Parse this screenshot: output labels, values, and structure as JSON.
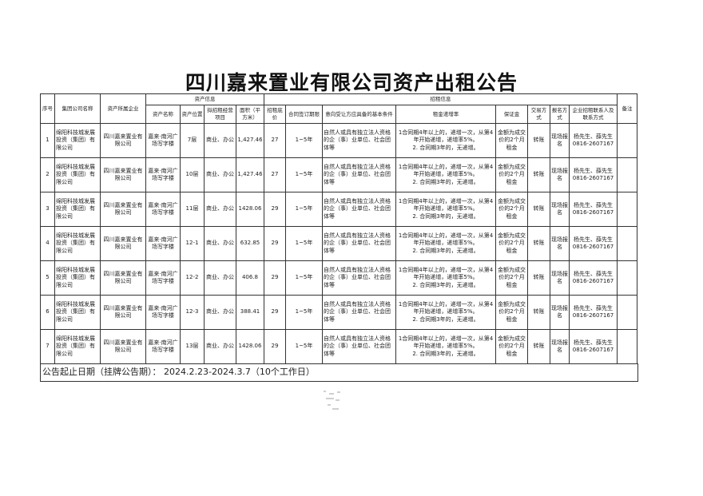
{
  "title": "四川嘉来置业有限公司资产出租公告",
  "headers": {
    "seq": "序号",
    "group_company": "集团公司名称",
    "owner": "资产所属企业",
    "asset_info": "资产信息",
    "asset_name": "资产名称",
    "asset_location": "资产位置",
    "business": "拟招租经营项目",
    "area": "面积（平方米）",
    "lease_info": "招租信息",
    "base_price": "招租底价",
    "term": "合同签订期限",
    "conditions": "意向受让方应具备的基本条件",
    "increase": "租金递增率",
    "deposit": "保证金",
    "trade": "交易方式",
    "signup": "报名方式",
    "contact": "企业招租联系人及联系方式",
    "remark": "备注"
  },
  "rows": [
    {
      "seq": "1",
      "group_company": "绵阳科技城发展投资（集团）有限公司",
      "owner": "四川嘉来置业有限公司",
      "asset_name": "嘉来·南河广场写字楼",
      "asset_location": "7层",
      "business": "商业、办公",
      "area": "1,427.46",
      "base_price": "27",
      "term": "1~5年",
      "conditions": "自然人或具有独立法人资格的企（事）业单位、社会团体等",
      "increase": "1合同期4年以上的，递增一次，从第4年开始递增，递增率5%。\n2. 合同期3年的，无递增。",
      "deposit": "金额为成交价的2个月租金",
      "trade": "转账",
      "signup": "现场报名",
      "contact": "杨先生、薛先生 0816-2607167",
      "remark": ""
    },
    {
      "seq": "2",
      "group_company": "绵阳科技城发展投资（集团）有限公司",
      "owner": "四川嘉来置业有限公司",
      "asset_name": "嘉来·南河广场写字楼",
      "asset_location": "10层",
      "business": "商业、办公",
      "area": "1,427.46",
      "base_price": "27",
      "term": "1~5年",
      "conditions": "自然人或具有独立法人资格的企（事）业单位、社会团体等",
      "increase": "1合同期4年以上的，递增一次，从第4年开始递增，递增率5%。\n2. 合同期3年的，无递增。",
      "deposit": "金额为成交价的2个月租金",
      "trade": "转账",
      "signup": "现场报名",
      "contact": "杨先生、薛先生 0816-2607167",
      "remark": ""
    },
    {
      "seq": "3",
      "group_company": "绵阳科技城发展投资（集团）有限公司",
      "owner": "四川嘉来置业有限公司",
      "asset_name": "嘉来·南河广场写字楼",
      "asset_location": "11层",
      "business": "商业、办公",
      "area": "1428.06",
      "base_price": "29",
      "term": "1~5年",
      "conditions": "自然人或具有独立法人资格的企（事）业单位、社会团体等",
      "increase": "1合同期4年以上的，递增一次，从第4年开始递增，递增率5%。\n2. 合同期3年的，无递增。",
      "deposit": "金额为成交价的2个月租金",
      "trade": "转账",
      "signup": "现场报名",
      "contact": "杨先生、薛先生 0816-2607167",
      "remark": ""
    },
    {
      "seq": "4",
      "group_company": "绵阳科技城发展投资（集团）有限公司",
      "owner": "四川嘉来置业有限公司",
      "asset_name": "嘉来·南河广场写字楼",
      "asset_location": "12-1",
      "business": "商业、办公",
      "area": "632.85",
      "base_price": "29",
      "term": "1~5年",
      "conditions": "自然人或具有独立法人资格的企（事）业单位、社会团体等",
      "increase": "1合同期4年以上的，递增一次，从第4年开始递增，递增率5%。\n2. 合同期3年的，无递增。",
      "deposit": "金额为成交价的2个月租金",
      "trade": "转账",
      "signup": "现场报名",
      "contact": "杨先生、薛先生 0816-2607167",
      "remark": ""
    },
    {
      "seq": "5",
      "group_company": "绵阳科技城发展投资（集团）有限公司",
      "owner": "四川嘉来置业有限公司",
      "asset_name": "嘉来·南河广场写字楼",
      "asset_location": "12-2",
      "business": "商业、办公",
      "area": "406.8",
      "base_price": "29",
      "term": "1~5年",
      "conditions": "自然人或具有独立法人资格的企（事）业单位、社会团体等",
      "increase": "1合同期4年以上的，递增一次，从第4年开始递增，递增率5%。\n2. 合同期3年的，无递增。",
      "deposit": "金额为成交价的2个月租金",
      "trade": "转账",
      "signup": "现场报名",
      "contact": "杨先生、薛先生 0816-2607167",
      "remark": ""
    },
    {
      "seq": "6",
      "group_company": "绵阳科技城发展投资（集团）有限公司",
      "owner": "四川嘉来置业有限公司",
      "asset_name": "嘉来·南河广场写字楼",
      "asset_location": "12-3",
      "business": "商业、办公",
      "area": "388.41",
      "base_price": "29",
      "term": "1~5年",
      "conditions": "自然人或具有独立法人资格的企（事）业单位、社会团体等",
      "increase": "1合同期4年以上的，递增一次，从第4年开始递增，递增率5%。\n2. 合同期3年的，无递增。",
      "deposit": "金额为成交价的2个月租金",
      "trade": "转账",
      "signup": "现场报名",
      "contact": "杨先生、薛先生 0816-2607167",
      "remark": ""
    },
    {
      "seq": "7",
      "group_company": "绵阳科技城发展投资（集团）有限公司",
      "owner": "四川嘉来置业有限公司",
      "asset_name": "嘉来·南河广场写字楼",
      "asset_location": "13层",
      "business": "商业、办公",
      "area": "1428.06",
      "base_price": "29",
      "term": "1~5年",
      "conditions": "自然人或具有独立法人资格的企（事）业单位、社会团体等",
      "increase": "1合同期4年以上的，递增一次，从第4年开始递增，递增率5%。\n2. 合同期3年的，无递增。",
      "deposit": "金额为成交价的2个月租金",
      "trade": "转账",
      "signup": "现场报名",
      "contact": "杨先生、薛先生 0816-2607167",
      "remark": ""
    }
  ],
  "footer": "公告起止日期（挂牌公告期）：  2024.2.23-2024.3.7（10个工作日）"
}
